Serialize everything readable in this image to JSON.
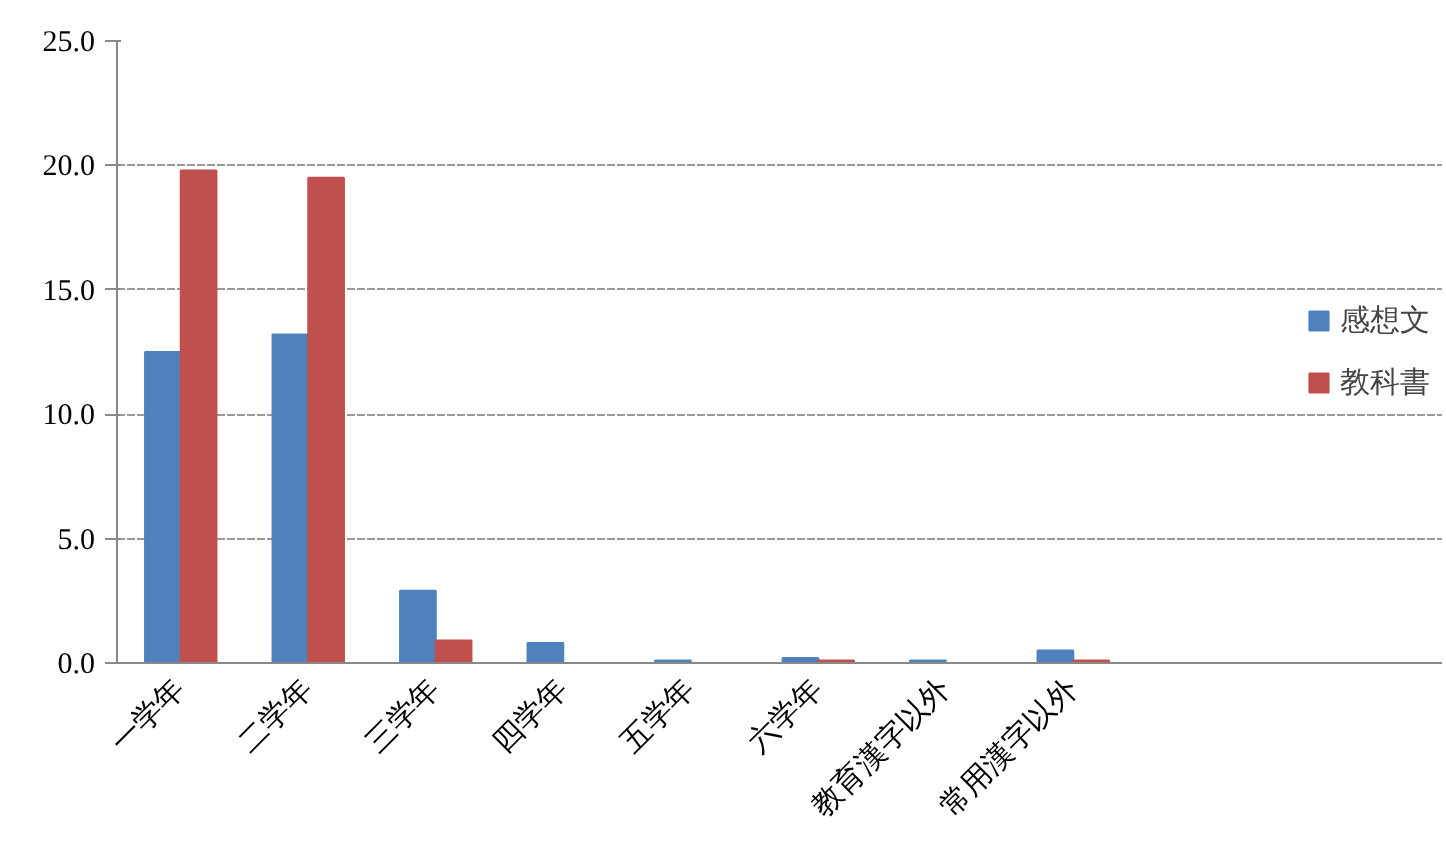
{
  "chart_data": {
    "type": "bar",
    "categories": [
      "一学年",
      "二学年",
      "三学年",
      "四学年",
      "五学年",
      "六学年",
      "教育漢字以外",
      "常用漢字以外"
    ],
    "series": [
      {
        "name": "感想文",
        "color": "#4f81bd",
        "values": [
          12.5,
          13.2,
          2.9,
          0.8,
          0.1,
          0.2,
          0.1,
          0.5
        ]
      },
      {
        "name": "教科書",
        "color": "#c0504d",
        "values": [
          19.8,
          19.5,
          0.9,
          0.0,
          0.0,
          0.1,
          0.0,
          0.1
        ]
      }
    ],
    "ylim": [
      0,
      25
    ],
    "yticks": [
      {
        "value": 0,
        "label": "0.0"
      },
      {
        "value": 5,
        "label": "5.0"
      },
      {
        "value": 10,
        "label": "10.0"
      },
      {
        "value": 15,
        "label": "15.0"
      },
      {
        "value": 20,
        "label": "20.0"
      },
      {
        "value": 25,
        "label": "25.0"
      }
    ],
    "grid": "y",
    "legend": "right"
  }
}
